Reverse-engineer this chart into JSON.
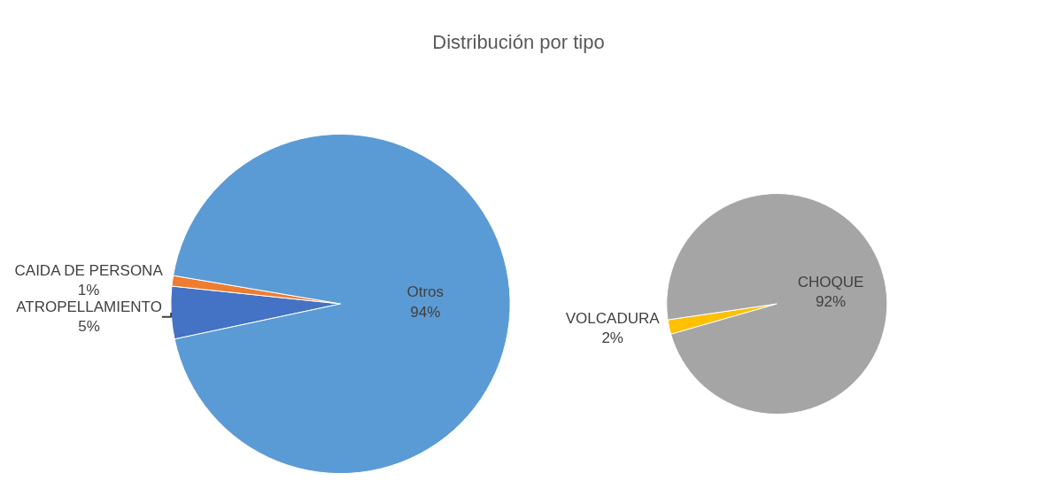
{
  "chart_data": [
    {
      "type": "pie",
      "title": "Distribución por tipo",
      "categories": [
        "ATROPELLAMIENTO",
        "CAIDA DE PERSONA",
        "Otros"
      ],
      "values": [
        5,
        1,
        94
      ],
      "value_labels": [
        "5%",
        "1%",
        "94%"
      ],
      "colors": [
        "#4472c4",
        "#ed7d31",
        "#5b9bd5"
      ],
      "legend": false
    },
    {
      "type": "pie",
      "categories": [
        "VOLCADURA",
        "CHOQUE"
      ],
      "values": [
        2,
        92
      ],
      "value_labels": [
        "2%",
        "92%"
      ],
      "colors": [
        "#ffc000",
        "#a5a5a5"
      ],
      "legend": false
    }
  ]
}
